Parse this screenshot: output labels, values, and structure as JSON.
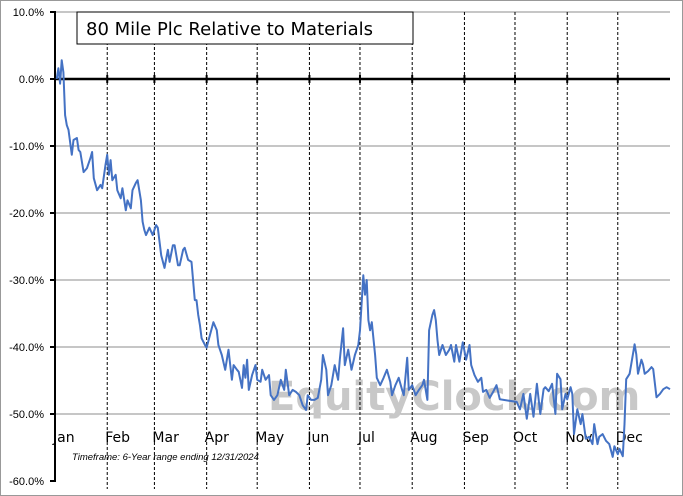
{
  "chart_data": {
    "type": "line",
    "title": "80 Mile Plc Relative to Materials",
    "timeframe_note": "Timeframe: 6-Year range ending 12/31/2024",
    "watermark": "EquityClock.com",
    "xlabel": "",
    "ylabel": "",
    "ylim": [
      -60,
      10
    ],
    "xlim": [
      0,
      365
    ],
    "yticks": [
      10,
      0,
      -10,
      -20,
      -30,
      -40,
      -50,
      -60
    ],
    "ytick_labels": [
      "10.0%",
      "0.0%",
      "-10.0%",
      "-20.0%",
      "-30.0%",
      "-40.0%",
      "-50.0%",
      "-60.0%"
    ],
    "month_labels": [
      "Jan",
      "Feb",
      "Mar",
      "Apr",
      "May",
      "Jun",
      "Jul",
      "Aug",
      "Sep",
      "Oct",
      "Nov",
      "Dec"
    ],
    "month_start_days": [
      0,
      31,
      59,
      90,
      120,
      151,
      181,
      212,
      243,
      273,
      304,
      334
    ],
    "grid": true,
    "line_color": "#4472C4",
    "series": [
      {
        "name": "80 Mile Plc Relative to Materials",
        "x": [
          1,
          2,
          3,
          4,
          5,
          6,
          7,
          8,
          10,
          11,
          13,
          14,
          15,
          17,
          19,
          21,
          22,
          23,
          25,
          27,
          28,
          30,
          31,
          32,
          33,
          34,
          36,
          37,
          39,
          40,
          42,
          43,
          45,
          46,
          48,
          49,
          51,
          52,
          53,
          54,
          56,
          58,
          60,
          61,
          63,
          65,
          67,
          68,
          70,
          71,
          73,
          74,
          76,
          77,
          79,
          81,
          83,
          84,
          85,
          86,
          87,
          89,
          90,
          92,
          94,
          96,
          97,
          99,
          101,
          103,
          105,
          106,
          108,
          109,
          111,
          112,
          113,
          114,
          115,
          117,
          119,
          120,
          122,
          123,
          125,
          127,
          128,
          130,
          132,
          134,
          136,
          137,
          139,
          141,
          143,
          145,
          147,
          149,
          150,
          152,
          154,
          156,
          158,
          159,
          161,
          162,
          164,
          166,
          168,
          169,
          171,
          172,
          174,
          176,
          178,
          180,
          181,
          183,
          184,
          185,
          186,
          187,
          188,
          190,
          191,
          193,
          195,
          197,
          199,
          200,
          202,
          204,
          206,
          207,
          209,
          210,
          212,
          214,
          216,
          218,
          219,
          221,
          222,
          224,
          225,
          226,
          227,
          228,
          230,
          232,
          234,
          235,
          237,
          238,
          240,
          242,
          244,
          246,
          247,
          249,
          251,
          253,
          254,
          256,
          258,
          260,
          262,
          264,
          274,
          276,
          278,
          280,
          282,
          284,
          286,
          288,
          290,
          291,
          293,
          295,
          297,
          298,
          300,
          301,
          303,
          304,
          306,
          307,
          308,
          310,
          312,
          313,
          315,
          317,
          319,
          320,
          322,
          323,
          325,
          327,
          329,
          331,
          332,
          334,
          335,
          337,
          338,
          339,
          341,
          342,
          344,
          345,
          346,
          348,
          349,
          350,
          352,
          354,
          355,
          357,
          359,
          361,
          363,
          365
        ],
        "values": [
          0,
          1.6,
          -0.7,
          2.8,
          1.0,
          -5.4,
          -6.9,
          -7.6,
          -11.3,
          -9.1,
          -8.8,
          -10.6,
          -10.9,
          -13.9,
          -13.3,
          -11.8,
          -10.9,
          -14.8,
          -16.6,
          -15.8,
          -16.3,
          -12.8,
          -11.3,
          -14.3,
          -12.1,
          -15.1,
          -14.3,
          -16.6,
          -17.8,
          -16.3,
          -19.6,
          -18.1,
          -19.3,
          -16.6,
          -15.5,
          -15.1,
          -18.1,
          -21.3,
          -22.5,
          -23.3,
          -22.2,
          -23.3,
          -21.8,
          -22.2,
          -26.3,
          -28.2,
          -25.5,
          -27.3,
          -24.8,
          -24.8,
          -27.8,
          -27.8,
          -25.5,
          -25.2,
          -27.0,
          -27.3,
          -33.0,
          -33.0,
          -35.2,
          -36.7,
          -38.7,
          -39.7,
          -40.1,
          -38.2,
          -36.3,
          -37.5,
          -39.7,
          -41.2,
          -43.4,
          -40.4,
          -44.9,
          -42.7,
          -43.4,
          -43.7,
          -46.1,
          -42.7,
          -44.6,
          -41.9,
          -46.4,
          -44.2,
          -42.7,
          -44.9,
          -45.2,
          -43.4,
          -44.9,
          -44.2,
          -47.2,
          -47.9,
          -47.2,
          -44.9,
          -46.4,
          -43.4,
          -47.2,
          -46.4,
          -46.7,
          -47.2,
          -48.7,
          -49.4,
          -47.2,
          -47.9,
          -47.9,
          -47.6,
          -44.9,
          -41.2,
          -43.4,
          -47.2,
          -45.7,
          -42.7,
          -44.9,
          -41.9,
          -37.2,
          -42.7,
          -40.4,
          -43.4,
          -41.2,
          -39.7,
          -37.5,
          -29.3,
          -32.2,
          -30.0,
          -36.0,
          -37.5,
          -36.3,
          -41.2,
          -44.6,
          -45.7,
          -44.6,
          -43.4,
          -45.2,
          -47.2,
          -45.7,
          -44.6,
          -46.4,
          -47.2,
          -41.6,
          -46.4,
          -45.7,
          -47.2,
          -46.4,
          -45.7,
          -44.9,
          -47.9,
          -37.5,
          -35.2,
          -34.5,
          -36.0,
          -39.0,
          -41.2,
          -39.7,
          -41.2,
          -40.4,
          -39.7,
          -42.2,
          -39.7,
          -42.2,
          -39.3,
          -41.9,
          -39.7,
          -42.7,
          -44.2,
          -45.2,
          -44.6,
          -46.7,
          -46.4,
          -47.6,
          -46.7,
          -45.7,
          -47.8,
          -48.2,
          -49.3,
          -47.0,
          -50.7,
          -47.0,
          -50.4,
          -45.5,
          -50.0,
          -46.3,
          -46.0,
          -46.6,
          -45.5,
          -50.0,
          -44.0,
          -44.8,
          -49.3,
          -47.0,
          -47.8,
          -46.0,
          -47.0,
          -53.0,
          -49.3,
          -51.5,
          -50.0,
          -53.7,
          -53.4,
          -54.5,
          -51.5,
          -54.5,
          -53.4,
          -53.0,
          -54.0,
          -54.5,
          -56.4,
          -54.8,
          -56.0,
          -55.2,
          -56.3,
          -51.5,
          -44.8,
          -44.0,
          -42.6,
          -39.6,
          -41.1,
          -44.0,
          -41.9,
          -42.6,
          -44.0,
          -43.6,
          -43.0,
          -43.3,
          -47.5,
          -47.0,
          -46.3,
          -46.0,
          -46.3
        ]
      }
    ]
  }
}
